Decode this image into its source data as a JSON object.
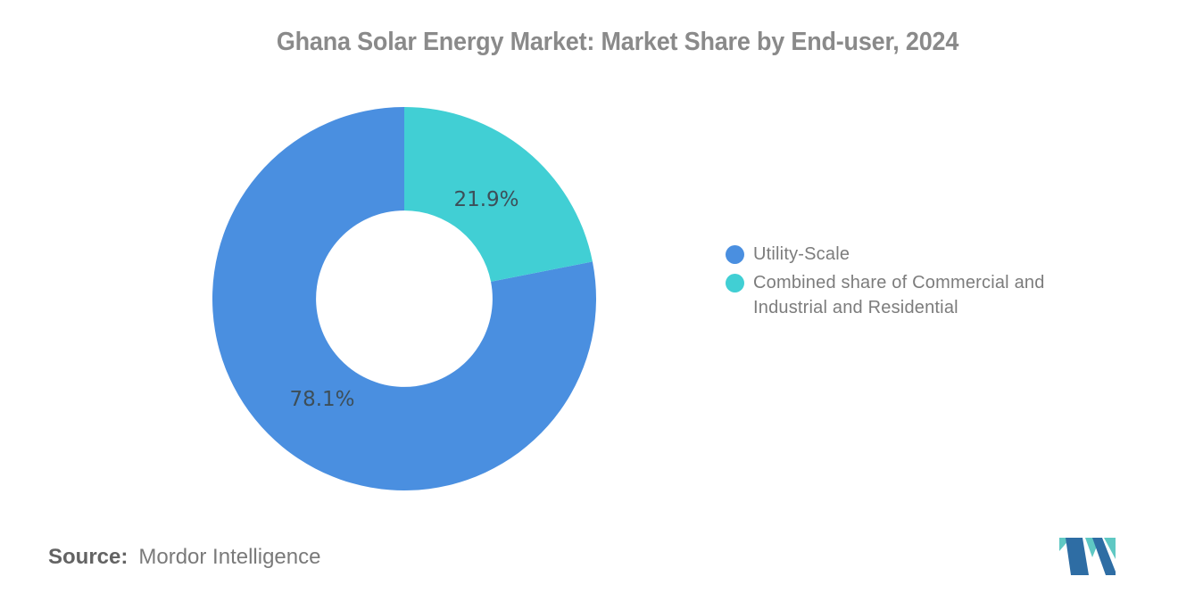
{
  "title": {
    "text": "Ghana Solar Energy Market: Market Share by End-user, 2024",
    "color": "#8a8a8a"
  },
  "chart_data": {
    "type": "pie",
    "style": "donut",
    "title": "Ghana Solar Energy Market: Market Share by End-user, 2024",
    "unit": "%",
    "categories": [
      "Utility-Scale",
      "Combined share of Commercial and Industrial and Residential"
    ],
    "values": [
      78.1,
      21.9
    ],
    "segments": [
      {
        "label": "Utility-Scale",
        "value": 78.1,
        "display_label": "78.1%",
        "color": "#4a8fe0",
        "start_deg": 78.84,
        "end_deg": 360
      },
      {
        "label": "Combined share of Commercial and Industrial and Residential",
        "value": 21.9,
        "display_label": "21.9%",
        "color": "#41cfd4",
        "start_deg": 0,
        "end_deg": 78.84
      }
    ],
    "inner_radius_ratio": 0.46,
    "label_radius_ratio": 0.674,
    "label_color": "#3d4e58",
    "legend_position": "right",
    "grid": false
  },
  "legend": {
    "text_color": "#7c7c7c",
    "items": [
      {
        "label": "Utility-Scale",
        "color": "#4a8fe0"
      },
      {
        "label": "Combined share of Commercial and\nIndustrial and Residential",
        "color": "#41cfd4"
      }
    ]
  },
  "source": {
    "label": "Source:",
    "value": "Mordor Intelligence"
  },
  "logo": {
    "name": "Mordor Intelligence logo mark",
    "blue": "#2e6da4",
    "teal": "#5fc8c3"
  }
}
